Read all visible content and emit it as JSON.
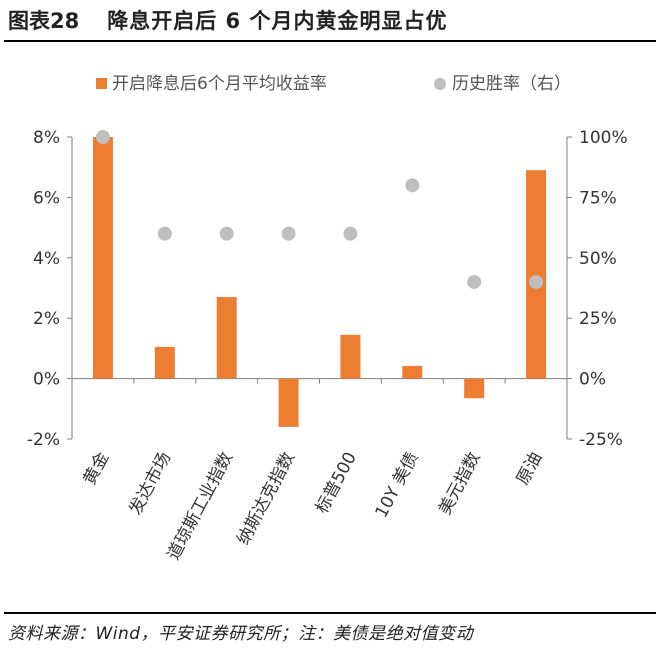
{
  "figure": {
    "number": "图表28",
    "title": "降息开启后 6 个月内黄金明显占优"
  },
  "source": "资料来源：Wind，平安证券研究所；注：美债是绝对值变动",
  "chart_data": {
    "type": "bar",
    "categories": [
      "黄金",
      "发达市场",
      "道琼斯工业指数",
      "纳斯达克指数",
      "标普500",
      "10Y 美债",
      "美元指数",
      "原油"
    ],
    "series": [
      {
        "name": "开启降息后6个月平均收益率",
        "type": "bar",
        "axis": "left",
        "unit": "%",
        "values": [
          8.0,
          1.05,
          2.7,
          -1.6,
          1.45,
          0.42,
          -0.65,
          6.9
        ],
        "color": "#ED7D31"
      },
      {
        "name": "历史胜率（右）",
        "type": "scatter",
        "axis": "right",
        "unit": "%",
        "values": [
          100,
          60,
          60,
          60,
          60,
          80,
          40,
          40
        ],
        "color": "#BFBFBF"
      }
    ],
    "y_left": {
      "min": -2,
      "max": 8,
      "ticks": [
        8,
        6,
        4,
        2,
        0,
        -2
      ],
      "tick_labels": [
        "8%",
        "6%",
        "4%",
        "2%",
        "0%",
        "-2%"
      ]
    },
    "y_right": {
      "min": -25,
      "max": 100,
      "ticks": [
        100,
        75,
        50,
        25,
        0,
        -25
      ],
      "tick_labels": [
        "100%",
        "75%",
        "50%",
        "25%",
        "0%",
        "-25%"
      ]
    },
    "legend_position": "top",
    "grid": false
  }
}
